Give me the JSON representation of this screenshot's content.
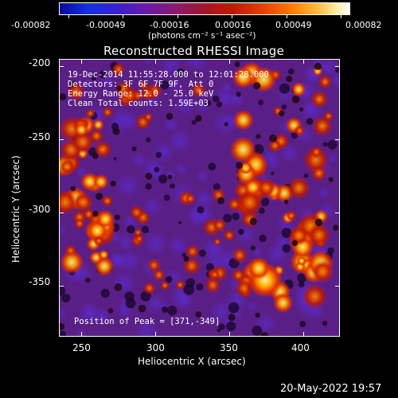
{
  "colorbar": {
    "tick_labels": [
      "-0.00082",
      "-0.00049",
      "-0.00016",
      "0.00016",
      "0.00049",
      "0.00082"
    ],
    "units": "(photons cm⁻² s⁻¹ asec⁻²)"
  },
  "title": "Reconstructed RHESSI Image",
  "overlay": {
    "time_range": "19-Dec-2014 11:55:28.000 to 12:01:28.000",
    "detectors": "Detectors: 3F 6F 7F 9F, Att 0",
    "energy_range": "Energy Range: 12.0 - 25.0 keV",
    "clean_counts": "Clean    Total counts: 1.59E+03",
    "peak_position": "Position of Peak = [371,-349]"
  },
  "x_axis": {
    "label": "Heliocentric X (arcsec)",
    "tick_labels": [
      "250",
      "300",
      "350",
      "400"
    ],
    "tick_values": [
      250,
      300,
      350,
      400
    ],
    "range": [
      235,
      425
    ]
  },
  "y_axis": {
    "label": "Heliocentric Y (arcsec)",
    "tick_labels": [
      "-200",
      "-250",
      "-300",
      "-350"
    ],
    "tick_values": [
      -200,
      -250,
      -300,
      -350
    ],
    "range": [
      -385,
      -195
    ]
  },
  "footer": {
    "timestamp": "20-May-2022 19:57"
  },
  "colors": {
    "background": "#000000",
    "text": "#ffffff"
  },
  "colormap": "rainbow-to-hot"
}
